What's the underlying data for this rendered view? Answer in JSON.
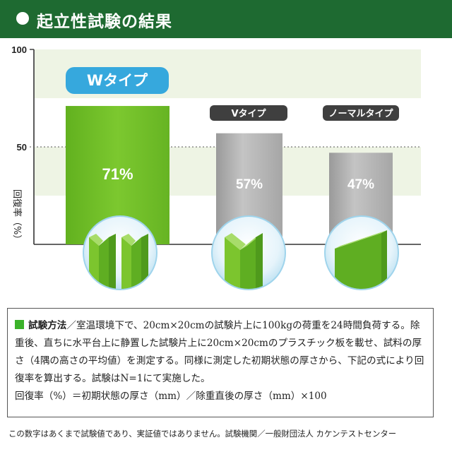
{
  "header": {
    "title": "起立性試験の結果"
  },
  "chart_data": {
    "type": "bar",
    "categories": [
      "Wタイプ",
      "Vタイプ",
      "ノーマルタイプ"
    ],
    "values": [
      71,
      57,
      47
    ],
    "value_labels": [
      "71%",
      "57%",
      "47%"
    ],
    "ylabel": "回復率（%）",
    "yticks": [
      "100",
      "50"
    ],
    "ylim": [
      0,
      100
    ],
    "bands": [
      [
        75,
        100
      ],
      [
        25,
        50
      ]
    ],
    "colors": {
      "w_bar": "#70bf2a",
      "gray_bar": "#b0b0b0",
      "band": "#eef4e4",
      "w_badge": "#36a8dd",
      "dark_badge": "#3f3f3f"
    },
    "grid": false,
    "legend": "none"
  },
  "method": {
    "label": "試験方法",
    "text": "／室温環境下で、20cm×20cmの試験片上に100kgの荷重を24時間負荷する。除重後、直ちに水平台上に静置した試験片上に20cm×20cmのプラスチック板を載せ、試料の厚さ（4隅の高さの平均値）を測定する。同様に測定した初期状態の厚さから、下記の式により回復率を算出する。試験はN=1にて実施した。",
    "formula": "回復率（%）＝初期状態の厚さ（mm）／除重直後の厚さ（mm）×100"
  },
  "note": "この数字はあくまで試験値であり、実証値ではありません。試験機関／一般財団法人 カケンテストセンター"
}
